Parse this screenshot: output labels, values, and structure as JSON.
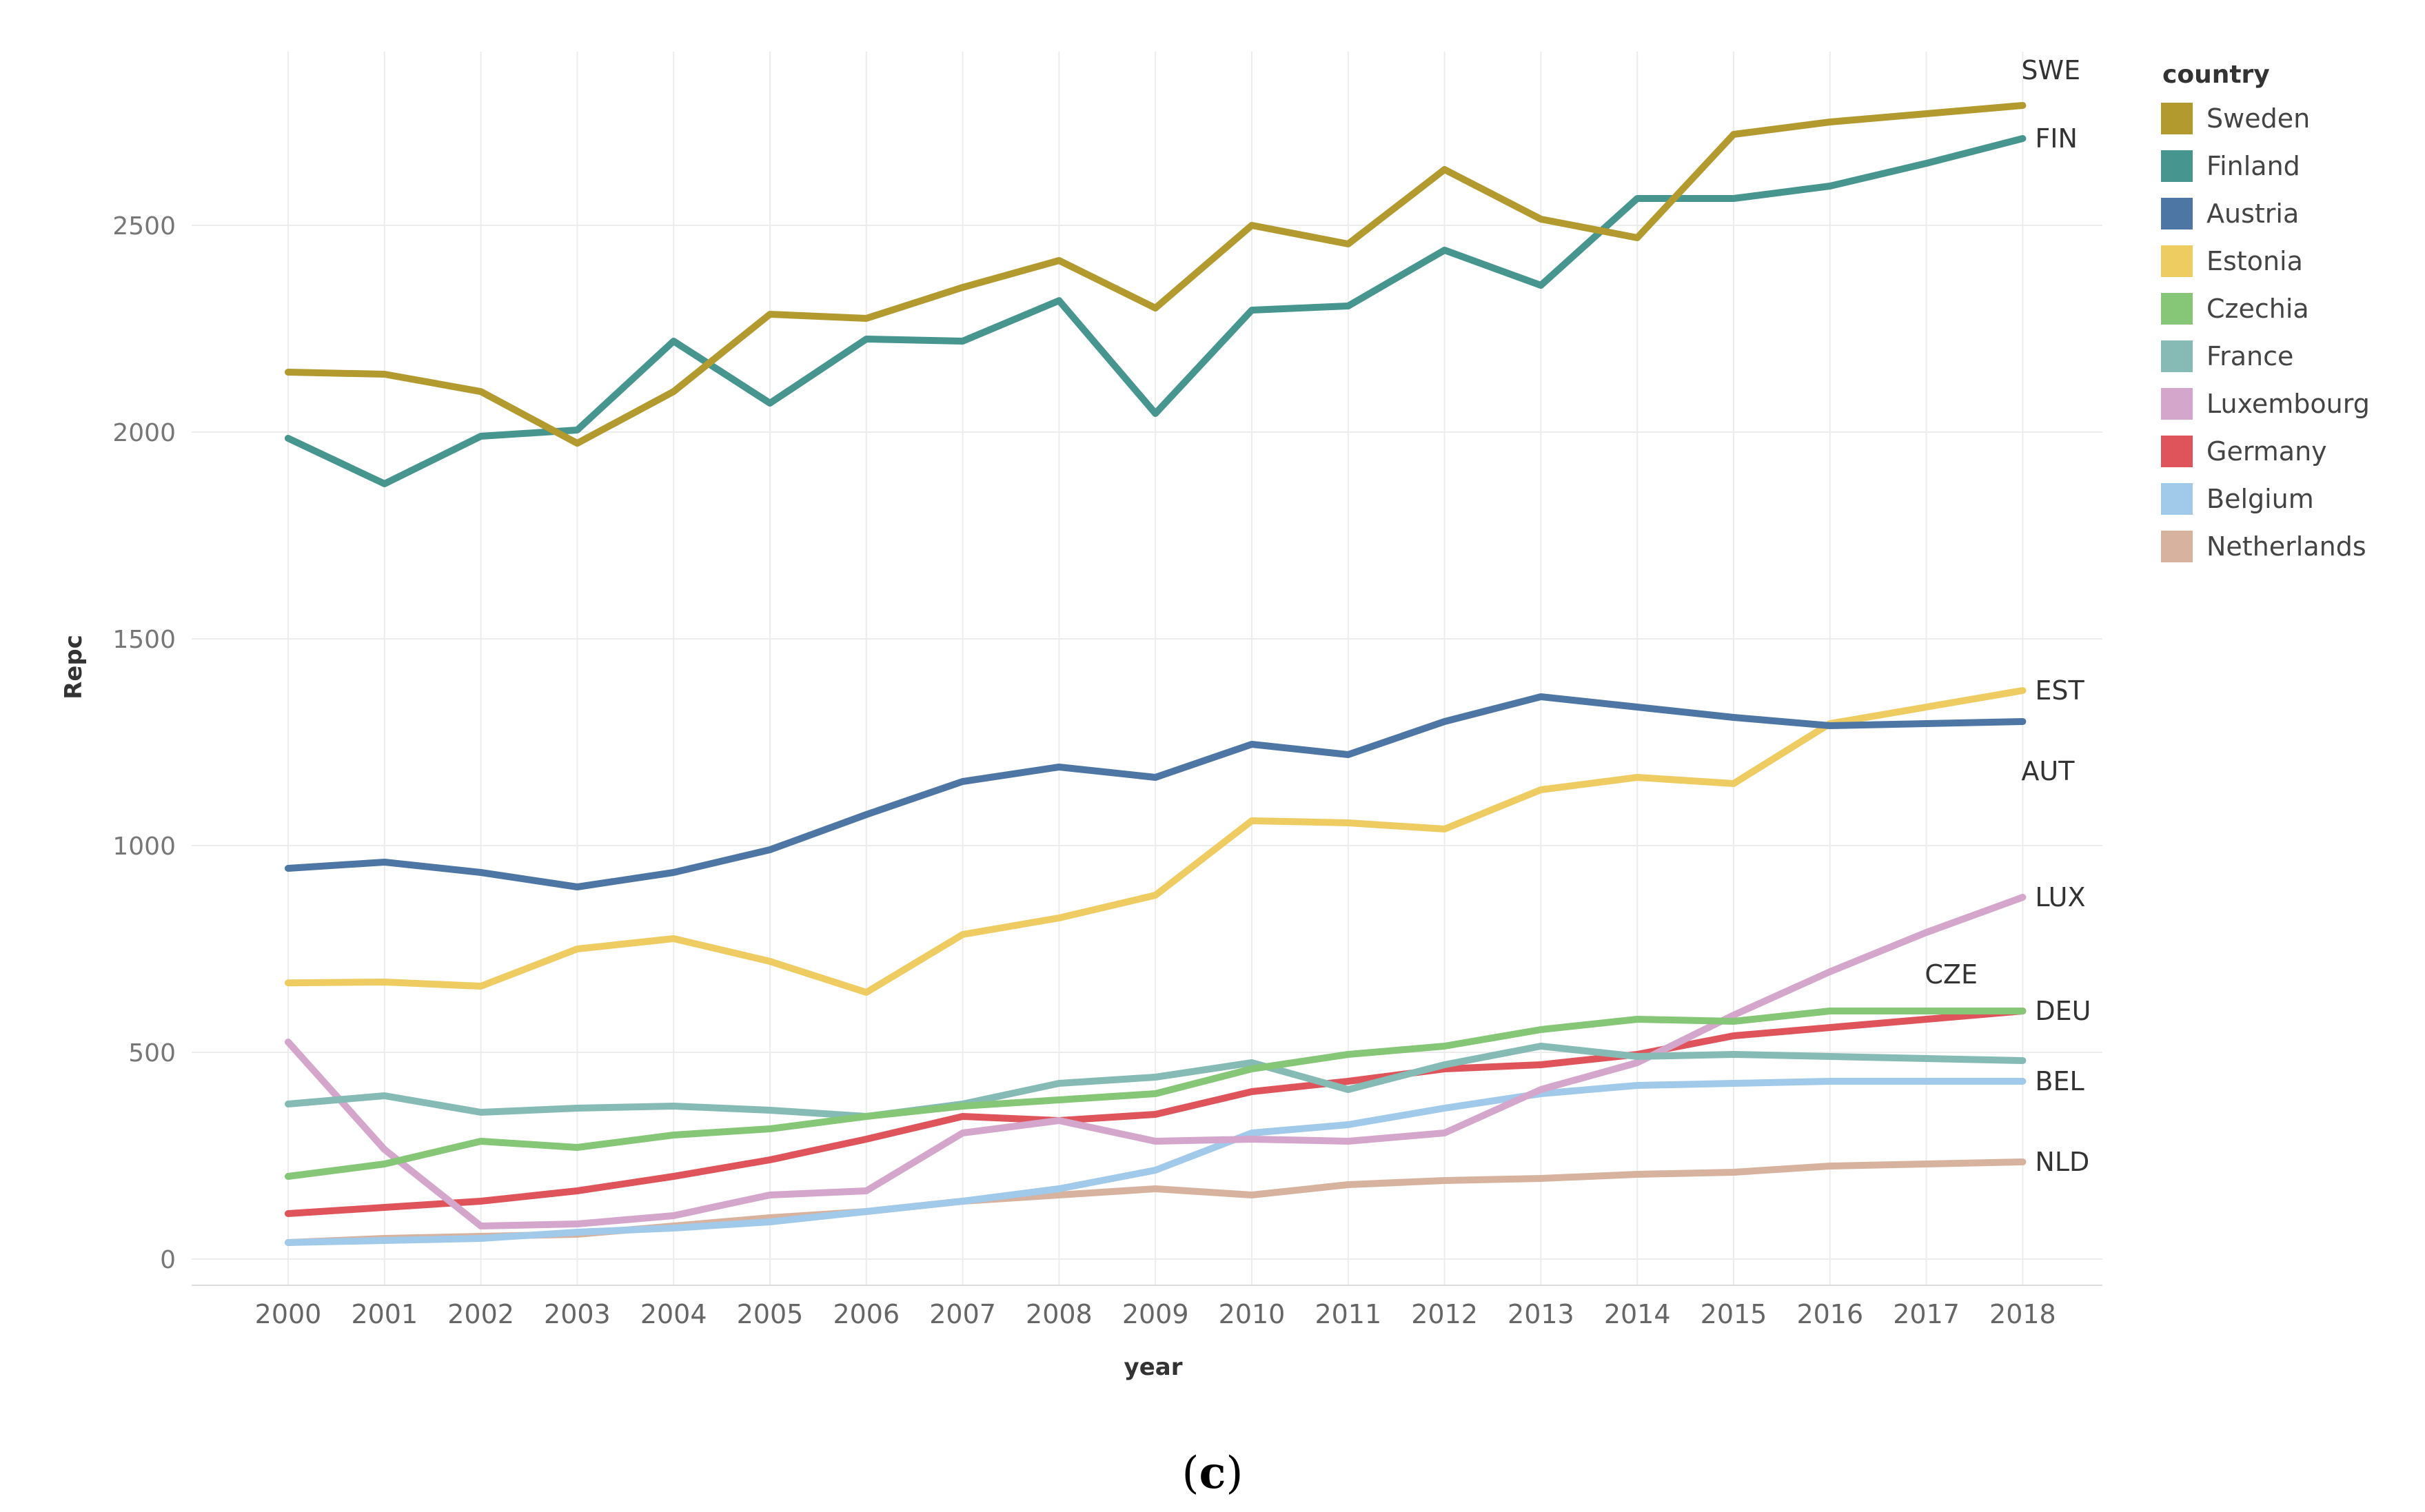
{
  "caption": {
    "paren_open": "(",
    "letter": "c",
    "paren_close": ")"
  },
  "legend": {
    "title": "country"
  },
  "chart_data": {
    "type": "line",
    "xlabel": "year",
    "ylabel": "Repc",
    "ylim": [
      -50,
      2900
    ],
    "yticks": [
      0,
      500,
      1000,
      1500,
      2000,
      2500
    ],
    "x": [
      2000,
      2001,
      2002,
      2003,
      2004,
      2005,
      2006,
      2007,
      2008,
      2009,
      2010,
      2011,
      2012,
      2013,
      2014,
      2015,
      2016,
      2017,
      2018
    ],
    "series": [
      {
        "name": "Sweden",
        "code": "SWE",
        "color": "#B39A2F",
        "values": [
          2145,
          2140,
          2098,
          1973,
          2098,
          2285,
          2275,
          2350,
          2415,
          2300,
          2500,
          2455,
          2635,
          2515,
          2470,
          2720,
          2750,
          2770,
          2790
        ]
      },
      {
        "name": "Finland",
        "code": "FIN",
        "color": "#46958F",
        "values": [
          1985,
          1875,
          1990,
          2005,
          2220,
          2070,
          2225,
          2220,
          2318,
          2045,
          2295,
          2305,
          2440,
          2355,
          2565,
          2565,
          2595,
          2650,
          2710
        ]
      },
      {
        "name": "Austria",
        "code": "AUT",
        "color": "#4E76A5",
        "values": [
          945,
          960,
          935,
          900,
          935,
          990,
          1075,
          1155,
          1190,
          1165,
          1245,
          1220,
          1300,
          1360,
          1335,
          1310,
          1290,
          1295,
          1300
        ]
      },
      {
        "name": "Estonia",
        "code": "EST",
        "color": "#EFCC62",
        "values": [
          668,
          670,
          660,
          750,
          775,
          720,
          645,
          785,
          825,
          880,
          1060,
          1055,
          1040,
          1135,
          1165,
          1150,
          1295,
          1335,
          1375
        ]
      },
      {
        "name": "Czechia",
        "code": "CZE",
        "color": "#85C776",
        "values": [
          200,
          230,
          285,
          270,
          300,
          315,
          345,
          370,
          385,
          400,
          460,
          495,
          515,
          555,
          580,
          575,
          600,
          600,
          600
        ]
      },
      {
        "name": "France",
        "code": "",
        "color": "#86BBB5",
        "values": [
          375,
          395,
          355,
          365,
          370,
          360,
          345,
          375,
          425,
          440,
          475,
          410,
          470,
          515,
          490,
          495,
          490,
          485,
          480
        ]
      },
      {
        "name": "Luxembourg",
        "code": "LUX",
        "color": "#D5A6CB",
        "values": [
          525,
          265,
          80,
          85,
          105,
          155,
          165,
          305,
          335,
          285,
          290,
          285,
          305,
          410,
          475,
          590,
          695,
          790,
          875
        ]
      },
      {
        "name": "Germany",
        "code": "DEU",
        "color": "#DE545A",
        "values": [
          110,
          125,
          140,
          165,
          200,
          240,
          290,
          345,
          335,
          350,
          405,
          430,
          460,
          470,
          495,
          540,
          560,
          580,
          600
        ]
      },
      {
        "name": "Belgium",
        "code": "BEL",
        "color": "#A1C9E9",
        "values": [
          40,
          45,
          50,
          65,
          75,
          90,
          115,
          140,
          170,
          215,
          305,
          325,
          365,
          400,
          420,
          425,
          430,
          430,
          430
        ]
      },
      {
        "name": "Netherlands",
        "code": "NLD",
        "color": "#D7B29E",
        "values": [
          40,
          50,
          55,
          60,
          80,
          100,
          115,
          140,
          155,
          170,
          155,
          180,
          190,
          195,
          205,
          210,
          225,
          230,
          235
        ]
      }
    ]
  }
}
